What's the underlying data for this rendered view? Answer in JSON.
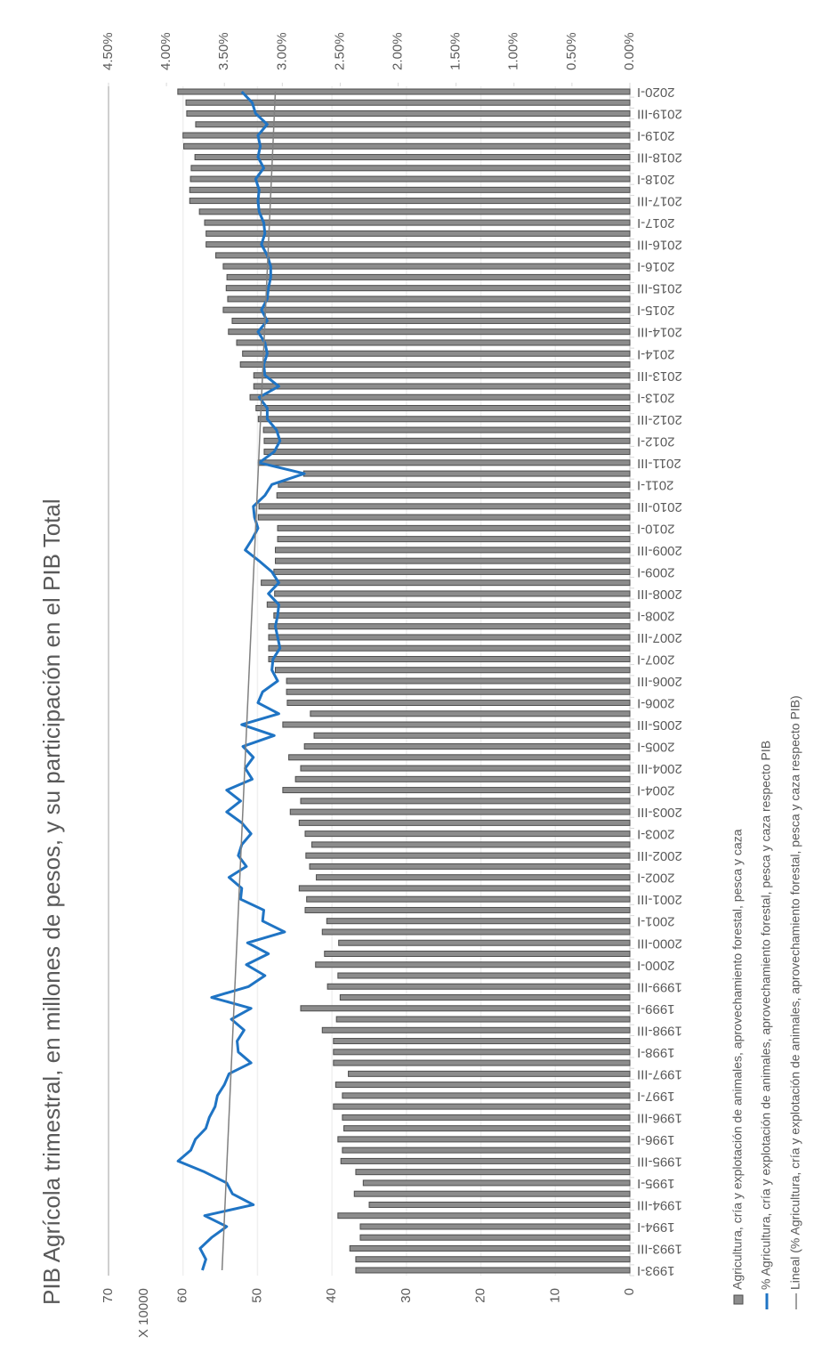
{
  "chart_data": {
    "type": "bar_line",
    "title": "PIB Agrícola trimestral,  en millones de pesos,  y su participación  en el PIB Total",
    "y_unit_label": "X 10000",
    "categories": [
      "1993-I",
      null,
      "1993-III",
      null,
      "1994-I",
      null,
      "1994-III",
      null,
      "1995-I",
      null,
      "1995-III",
      null,
      "1996-I",
      null,
      "1996-III",
      null,
      "1997-I",
      null,
      "1997-III",
      null,
      "1998-I",
      null,
      "1998-III",
      null,
      "1999-I",
      null,
      "1999-III",
      null,
      "2000-I",
      null,
      "2000-III",
      null,
      "2001-I",
      null,
      "2001-III",
      null,
      "2002-I",
      null,
      "2002-III",
      null,
      "2003-I",
      null,
      "2003-III",
      null,
      "2004-I",
      null,
      "2004-III",
      null,
      "2005-I",
      null,
      "2005-III",
      null,
      "2006-I",
      null,
      "2006-III",
      null,
      "2007-I",
      null,
      "2007-III",
      null,
      "2008-I",
      null,
      "2008-III",
      null,
      "2009-I",
      null,
      "2009-III",
      null,
      "2010-I",
      null,
      "2010-III",
      null,
      "2011-I",
      null,
      "2011-III",
      null,
      "2012-I",
      null,
      "2012-III",
      null,
      "2013-I",
      null,
      "2013-III",
      null,
      "2014-I",
      null,
      "2014-III",
      null,
      "2015-I",
      null,
      "2015-III",
      null,
      "2016-I",
      null,
      "2016-III",
      null,
      "2017-I",
      null,
      "2017-III",
      null,
      "2018-I",
      null,
      "2018-III",
      null,
      "2019-I",
      null,
      "2019-III",
      null,
      "2020-I"
    ],
    "series": [
      {
        "name": "Agricultura, cría y explotación de animales, aprovechamiento forestal, pesca y caza",
        "type": "bar",
        "color": "#8c8c8c",
        "edge": "#4d4d4d",
        "values": [
          36.8,
          36.8,
          37.6,
          36.2,
          36.2,
          39.2,
          35.0,
          37.0,
          35.8,
          36.8,
          38.8,
          38.6,
          39.2,
          38.4,
          38.6,
          39.8,
          38.6,
          39.5,
          37.8,
          39.8,
          39.8,
          39.8,
          41.3,
          39.4,
          44.2,
          38.9,
          40.6,
          39.2,
          42.2,
          41.0,
          39.1,
          41.3,
          40.7,
          43.6,
          43.4,
          44.4,
          42.1,
          43.0,
          43.5,
          42.7,
          43.6,
          44.4,
          45.6,
          44.2,
          46.6,
          44.9,
          44.2,
          45.8,
          43.7,
          42.4,
          46.6,
          42.9,
          46.0,
          46.1,
          46.1,
          47.6,
          48.5,
          48.5,
          48.5,
          48.5,
          47.8,
          48.7,
          47.7,
          49.5,
          47.8,
          47.6,
          47.6,
          47.3,
          47.3,
          49.9,
          49.8,
          47.4,
          47.2,
          43.8,
          49.9,
          49.1,
          49.1,
          49.2,
          49.9,
          50.2,
          51.0,
          50.5,
          50.5,
          52.3,
          52.0,
          52.8,
          53.9,
          53.4,
          54.6,
          54.0,
          54.2,
          54.1,
          54.6,
          55.6,
          56.9,
          56.9,
          57.1,
          57.8,
          59.1,
          59.1,
          59.0,
          58.9,
          58.4,
          59.9,
          60.0,
          58.3,
          59.5,
          59.6,
          60.7
        ]
      },
      {
        "name": "% Agricultura, cría y explotación de animales, aprovechamiento forestal, pesca y caza respecto PIB",
        "type": "line",
        "axis": "y2",
        "color": "#1f74c4",
        "values": [
          3.69,
          3.66,
          3.71,
          3.61,
          3.48,
          3.67,
          3.25,
          3.43,
          3.48,
          3.67,
          3.9,
          3.79,
          3.75,
          3.66,
          3.63,
          3.58,
          3.56,
          3.5,
          3.46,
          3.27,
          3.38,
          3.39,
          3.33,
          3.44,
          3.27,
          3.61,
          3.29,
          3.15,
          3.31,
          3.12,
          3.3,
          2.98,
          3.17,
          3.16,
          3.36,
          3.35,
          3.46,
          3.31,
          3.38,
          3.35,
          3.27,
          3.35,
          3.48,
          3.36,
          3.48,
          3.26,
          3.32,
          3.25,
          3.34,
          3.07,
          3.35,
          3.03,
          3.21,
          3.17,
          3.04,
          3.09,
          3.08,
          3.02,
          3.04,
          3.06,
          3.04,
          3.03,
          3.12,
          3.03,
          3.09,
          3.2,
          3.32,
          3.26,
          3.21,
          3.24,
          3.25,
          3.15,
          3.09,
          2.81,
          3.2,
          3.07,
          3.02,
          3.05,
          3.13,
          3.13,
          3.2,
          3.03,
          3.15,
          3.16,
          3.13,
          3.15,
          3.21,
          3.13,
          3.18,
          3.13,
          3.12,
          3.1,
          3.1,
          3.13,
          3.18,
          3.15,
          3.16,
          3.2,
          3.21,
          3.2,
          3.23,
          3.16,
          3.21,
          3.19,
          3.21,
          3.13,
          3.23,
          3.26,
          3.35
        ]
      }
    ],
    "trendline": {
      "name": "Lineal (% Agricultura, cría y explotación de animales, aprovechamiento forestal, pesca y caza respecto PIB)",
      "color": "#808080",
      "values": [
        3.52,
        3.06
      ]
    },
    "ylim": [
      0,
      70
    ],
    "yticks": [
      0,
      10,
      20,
      30,
      40,
      50,
      60,
      70
    ],
    "y2lim": [
      0,
      4.5
    ],
    "y2ticks": [
      {
        "value": 0,
        "label": "0.00%"
      },
      {
        "value": 0.5,
        "label": "0.50%"
      },
      {
        "value": 1,
        "label": "1.00%"
      },
      {
        "value": 1.5,
        "label": "1.50%"
      },
      {
        "value": 2,
        "label": "2.00%"
      },
      {
        "value": 2.5,
        "label": "2.50%"
      },
      {
        "value": 3,
        "label": "3.00%"
      },
      {
        "value": 3.5,
        "label": "3.50%"
      },
      {
        "value": 4,
        "label": "4.00%"
      },
      {
        "value": 4.5,
        "label": "4.50%"
      }
    ],
    "grid": true,
    "legend": "bottom"
  }
}
